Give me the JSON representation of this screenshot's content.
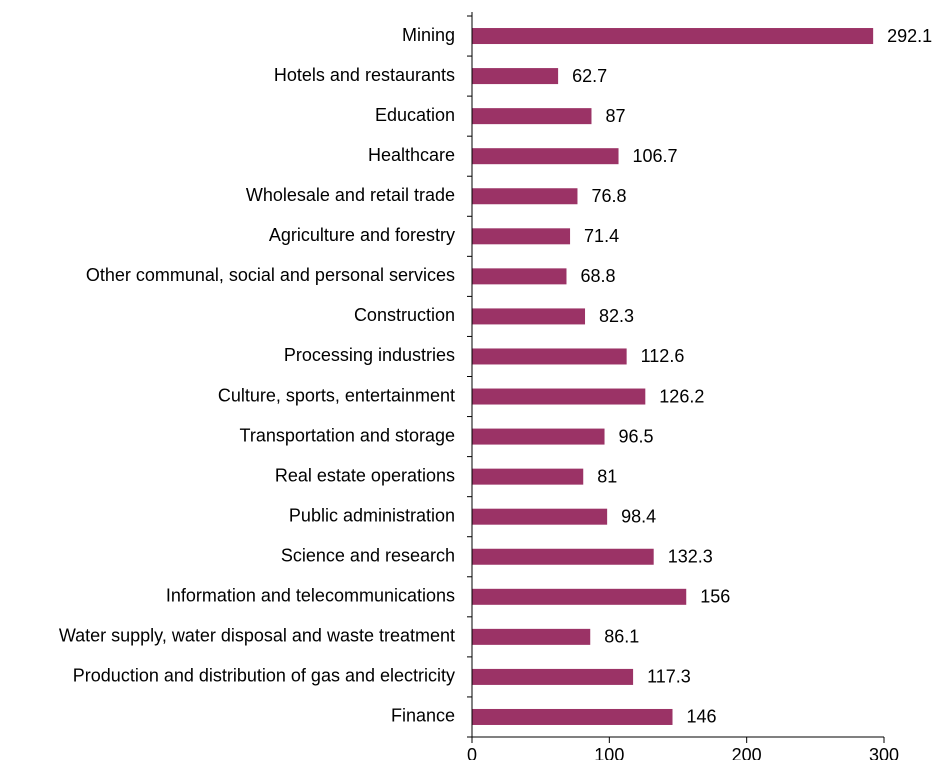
{
  "chart_data": {
    "type": "bar",
    "orientation": "horizontal",
    "title": "",
    "xlabel": "",
    "ylabel": "",
    "categories": [
      "Mining",
      "Hotels and restaurants",
      "Education",
      "Healthcare",
      "Wholesale and retail trade",
      "Agriculture and forestry",
      "Other communal, social and personal services",
      "Construction",
      "Processing industries",
      "Culture, sports, entertainment",
      "Transportation and storage",
      "Real estate operations",
      "Public administration",
      "Science and research",
      "Information and telecommunications",
      "Water supply, water disposal and waste treatment",
      "Production and distribution of gas and electricity",
      "Finance"
    ],
    "values": [
      292.1,
      62.7,
      87,
      106.7,
      76.8,
      71.4,
      68.8,
      82.3,
      112.6,
      126.2,
      96.5,
      81,
      98.4,
      132.3,
      156,
      86.1,
      117.3,
      146
    ],
    "value_labels": [
      "292.1",
      "62.7",
      "87",
      "106.7",
      "76.8",
      "71.4",
      "68.8",
      "82.3",
      "112.6",
      "126.2",
      "96.5",
      "81",
      "98.4",
      "132.3",
      "156",
      "86.1",
      "117.3",
      "146"
    ],
    "xlim": [
      0,
      300
    ],
    "xticks": [
      "0",
      "100",
      "200",
      "300"
    ],
    "grid": false,
    "legend": "none",
    "bar_color": "#9b3366"
  }
}
